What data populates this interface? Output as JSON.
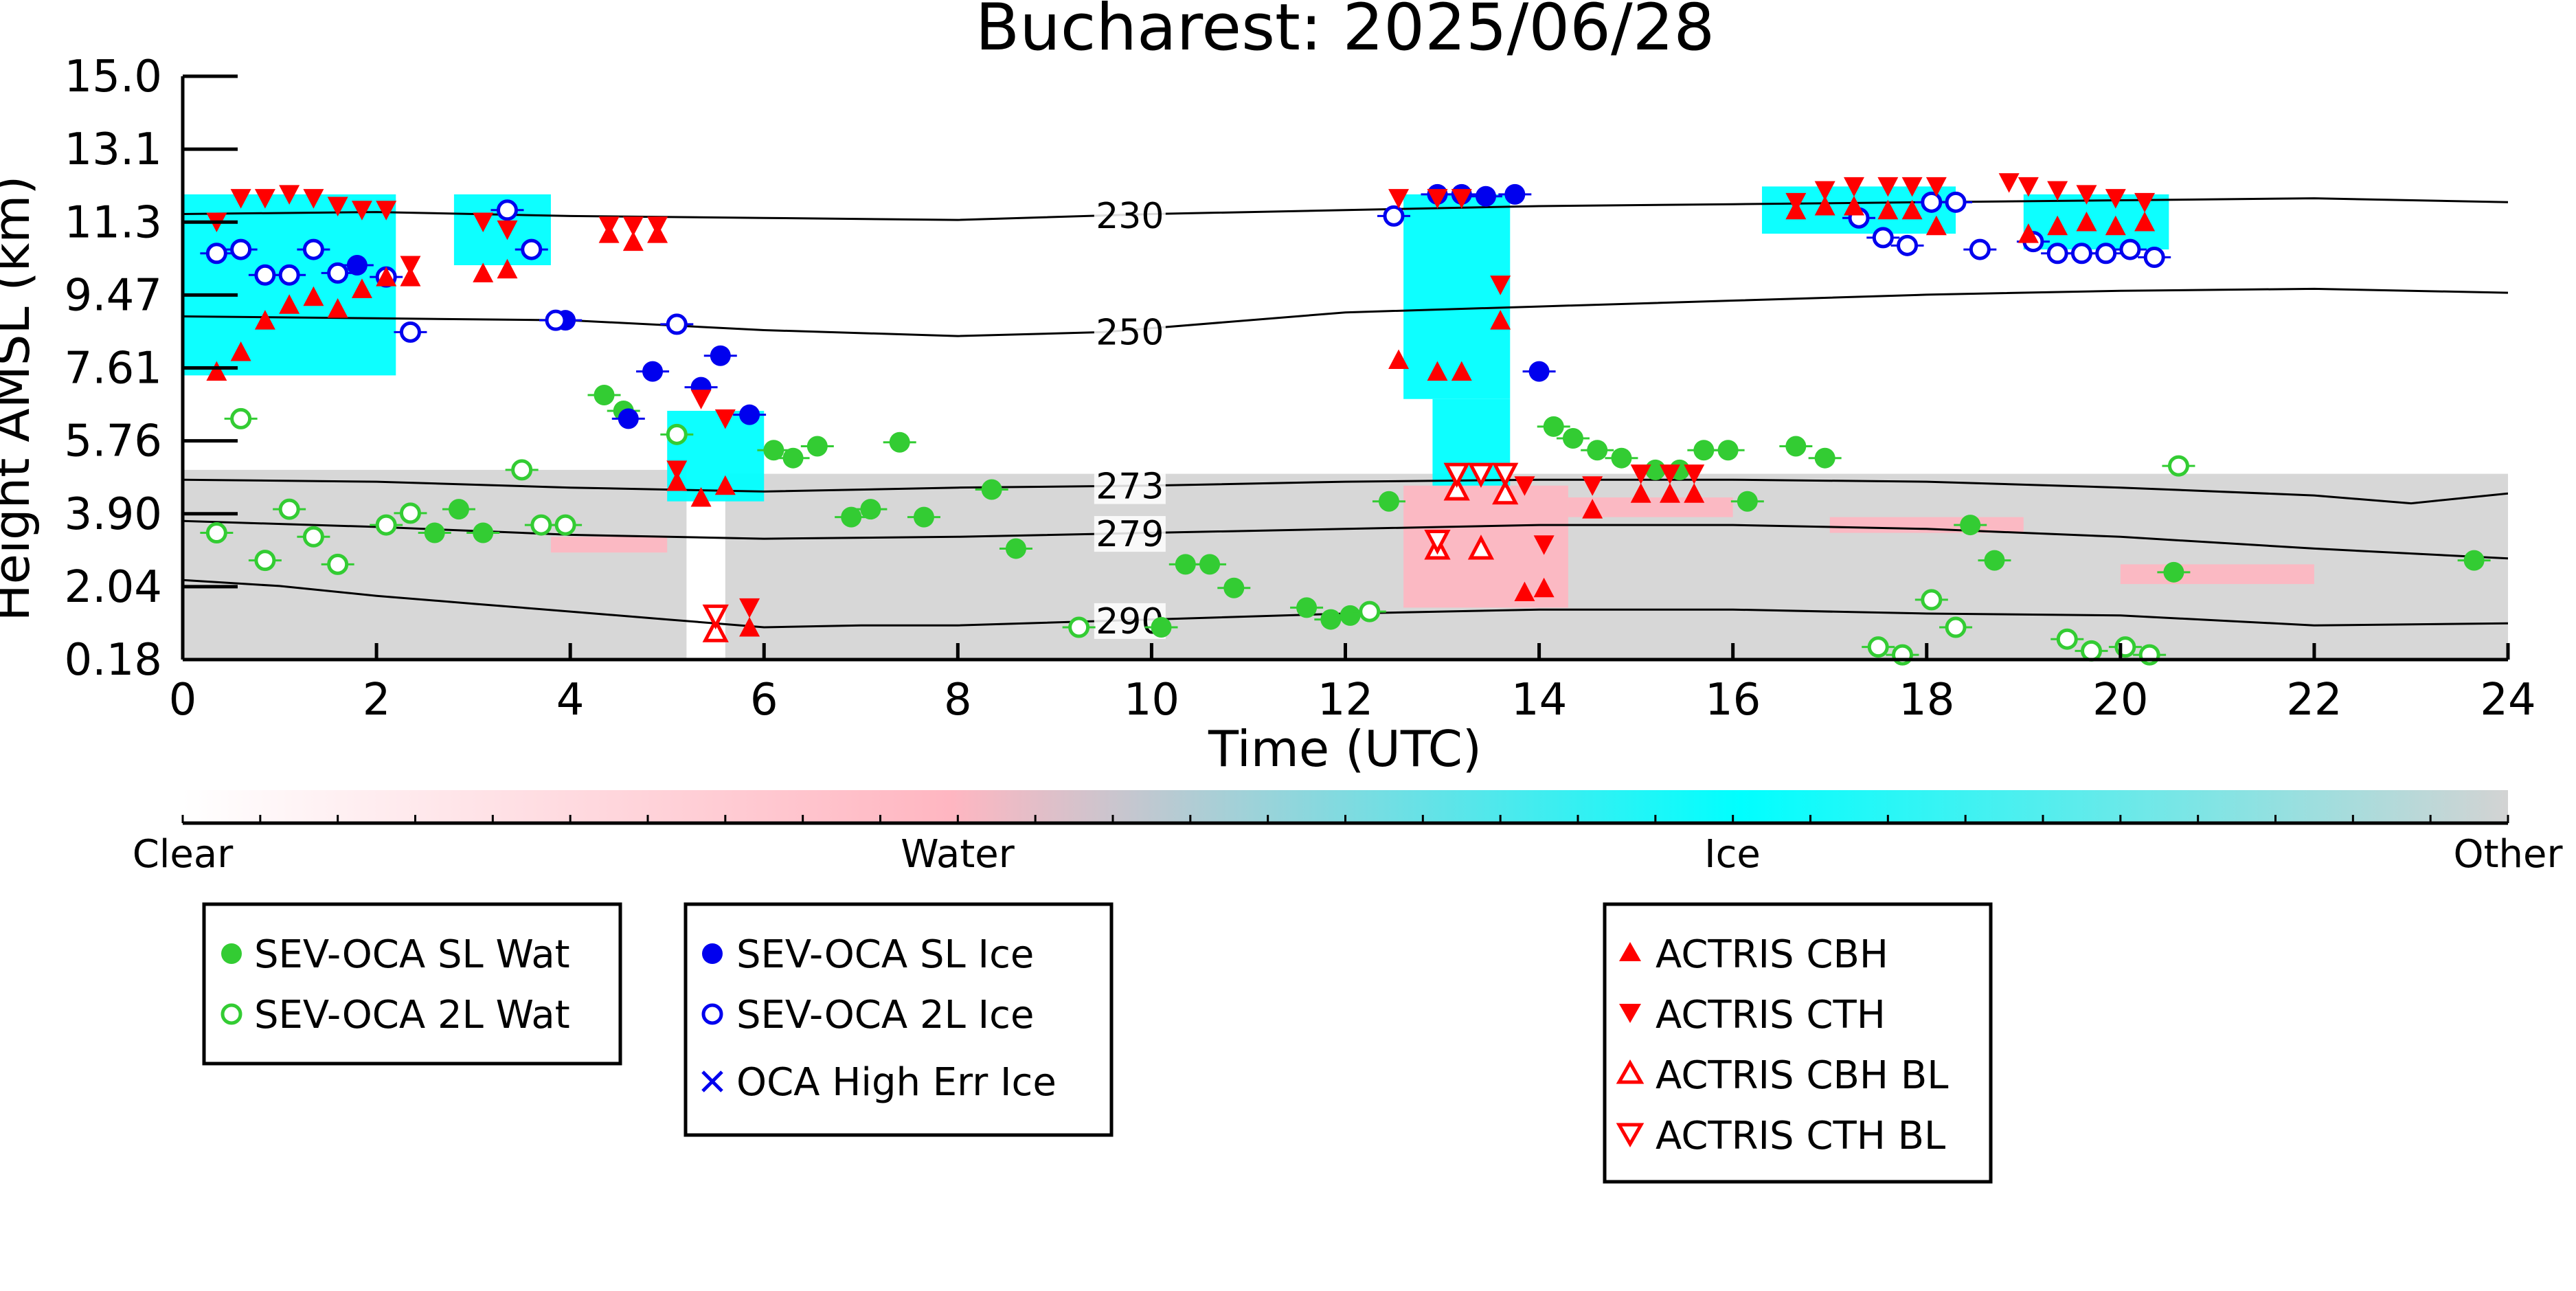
{
  "chart_data": {
    "type": "scatter",
    "title": "Bucharest: 2025/06/28",
    "xlabel": "Time (UTC)",
    "ylabel": "Height AMSL (km)",
    "xlim": [
      0,
      24
    ],
    "ylim": [
      0.18,
      15.0
    ],
    "x_ticks": [
      "0",
      "2",
      "4",
      "6",
      "8",
      "10",
      "12",
      "14",
      "16",
      "18",
      "20",
      "22",
      "24"
    ],
    "y_ticks": [
      "0.18",
      "2.04",
      "3.90",
      "5.76",
      "7.61",
      "9.47",
      "11.3",
      "13.1",
      "15.0"
    ],
    "colorbar": {
      "labels": [
        "Clear",
        "Water",
        "Ice",
        "Other"
      ],
      "colors": {
        "clear": "#ffffff",
        "water": "#ffb6c1",
        "ice": "#00ffff",
        "other": "#d3d3d3"
      }
    },
    "colors": {
      "green": "#33cc33",
      "blue": "#0000ee",
      "red": "#ff0000",
      "ice": "#00ffff",
      "water": "#ffb6c1",
      "other": "#d3d3d3"
    },
    "legend": {
      "group1": [
        "SEV-OCA SL Wat",
        "SEV-OCA 2L Wat"
      ],
      "group2": [
        "SEV-OCA SL Ice",
        "SEV-OCA 2L Ice",
        "OCA High Err Ice"
      ],
      "group3": [
        "ACTRIS CBH",
        "ACTRIS CTH",
        "ACTRIS CBH BL",
        "ACTRIS CTH BL"
      ]
    },
    "contours": [
      {
        "label": "230",
        "label_x": 9.45,
        "points": [
          [
            0,
            11.5
          ],
          [
            2,
            11.55
          ],
          [
            4,
            11.45
          ],
          [
            6,
            11.4
          ],
          [
            8,
            11.35
          ],
          [
            10,
            11.5
          ],
          [
            12,
            11.6
          ],
          [
            14,
            11.7
          ],
          [
            16,
            11.75
          ],
          [
            18,
            11.8
          ],
          [
            20,
            11.85
          ],
          [
            22,
            11.9
          ],
          [
            24,
            11.8
          ]
        ]
      },
      {
        "label": "250",
        "label_x": 9.45,
        "points": [
          [
            0,
            8.9
          ],
          [
            2,
            8.85
          ],
          [
            4,
            8.8
          ],
          [
            6,
            8.55
          ],
          [
            8,
            8.4
          ],
          [
            9.5,
            8.5
          ],
          [
            12,
            9.0
          ],
          [
            14,
            9.15
          ],
          [
            16,
            9.3
          ],
          [
            18,
            9.45
          ],
          [
            20,
            9.55
          ],
          [
            22,
            9.6
          ],
          [
            24,
            9.5
          ]
        ]
      },
      {
        "label": "273",
        "label_x": 9.45,
        "points": [
          [
            0,
            4.75
          ],
          [
            2,
            4.7
          ],
          [
            4,
            4.55
          ],
          [
            6,
            4.45
          ],
          [
            8,
            4.55
          ],
          [
            10,
            4.6
          ],
          [
            12,
            4.7
          ],
          [
            14,
            4.75
          ],
          [
            16,
            4.75
          ],
          [
            18,
            4.7
          ],
          [
            20,
            4.55
          ],
          [
            22,
            4.35
          ],
          [
            23,
            4.15
          ],
          [
            24,
            4.4
          ]
        ]
      },
      {
        "label": "279",
        "label_x": 9.45,
        "points": [
          [
            0,
            3.7
          ],
          [
            2,
            3.55
          ],
          [
            4,
            3.35
          ],
          [
            6,
            3.25
          ],
          [
            8,
            3.3
          ],
          [
            10,
            3.4
          ],
          [
            12,
            3.5
          ],
          [
            14,
            3.6
          ],
          [
            16,
            3.6
          ],
          [
            18,
            3.5
          ],
          [
            20,
            3.3
          ],
          [
            22,
            3.0
          ],
          [
            24,
            2.75
          ]
        ]
      },
      {
        "label": "290",
        "label_x": 9.45,
        "points": [
          [
            0,
            2.2
          ],
          [
            1,
            2.05
          ],
          [
            2,
            1.8
          ],
          [
            3,
            1.6
          ],
          [
            4,
            1.4
          ],
          [
            5,
            1.2
          ],
          [
            6,
            1.0
          ],
          [
            7,
            1.05
          ],
          [
            8,
            1.05
          ],
          [
            10,
            1.2
          ],
          [
            12,
            1.35
          ],
          [
            14,
            1.45
          ],
          [
            16,
            1.45
          ],
          [
            18,
            1.35
          ],
          [
            20,
            1.3
          ],
          [
            22,
            1.05
          ],
          [
            24,
            1.1
          ]
        ]
      }
    ],
    "cloud_mask": [
      {
        "class": "ice",
        "x0": 0.0,
        "x1": 2.2,
        "y0": 7.4,
        "y1": 12.0
      },
      {
        "class": "ice",
        "x0": 2.8,
        "x1": 3.8,
        "y0": 10.2,
        "y1": 12.0
      },
      {
        "class": "ice",
        "x0": 5.0,
        "x1": 6.0,
        "y0": 4.2,
        "y1": 6.5
      },
      {
        "class": "ice",
        "x0": 12.6,
        "x1": 13.7,
        "y0": 6.8,
        "y1": 12.0
      },
      {
        "class": "ice",
        "x0": 12.9,
        "x1": 13.7,
        "y0": 4.6,
        "y1": 6.8
      },
      {
        "class": "ice",
        "x0": 16.3,
        "x1": 18.3,
        "y0": 11.0,
        "y1": 12.2
      },
      {
        "class": "ice",
        "x0": 19.0,
        "x1": 20.5,
        "y0": 10.6,
        "y1": 12.0
      },
      {
        "class": "other",
        "x0": 0.0,
        "x1": 5.2,
        "y0": 0.18,
        "y1": 5.0
      },
      {
        "class": "other",
        "x0": 5.6,
        "x1": 24.0,
        "y0": 0.18,
        "y1": 4.9
      },
      {
        "class": "water",
        "x0": 3.8,
        "x1": 5.0,
        "y0": 2.9,
        "y1": 3.3
      },
      {
        "class": "water",
        "x0": 12.6,
        "x1": 14.3,
        "y0": 1.5,
        "y1": 4.6
      },
      {
        "class": "water",
        "x0": 14.3,
        "x1": 16.0,
        "y0": 3.8,
        "y1": 4.3
      },
      {
        "class": "water",
        "x0": 17.0,
        "x1": 19.0,
        "y0": 3.4,
        "y1": 3.8
      },
      {
        "class": "water",
        "x0": 20.0,
        "x1": 22.0,
        "y0": 2.1,
        "y1": 2.6
      }
    ],
    "series": [
      {
        "name": "SEV-OCA SL Wat",
        "marker": "circle",
        "fill": "filled",
        "color": "#33cc33",
        "points": [
          [
            2.6,
            3.4
          ],
          [
            2.85,
            4.0
          ],
          [
            3.1,
            3.4
          ],
          [
            4.35,
            6.9
          ],
          [
            4.55,
            6.5
          ],
          [
            6.1,
            5.5
          ],
          [
            6.3,
            5.3
          ],
          [
            6.55,
            5.6
          ],
          [
            6.9,
            3.8
          ],
          [
            7.1,
            4.0
          ],
          [
            7.4,
            5.7
          ],
          [
            7.65,
            3.8
          ],
          [
            8.35,
            4.5
          ],
          [
            8.6,
            3.0
          ],
          [
            10.1,
            1.0
          ],
          [
            10.35,
            2.6
          ],
          [
            10.6,
            2.6
          ],
          [
            10.85,
            2.0
          ],
          [
            11.6,
            1.5
          ],
          [
            11.85,
            1.2
          ],
          [
            12.05,
            1.3
          ],
          [
            12.45,
            4.2
          ],
          [
            14.15,
            6.1
          ],
          [
            14.35,
            5.8
          ],
          [
            14.6,
            5.5
          ],
          [
            14.85,
            5.3
          ],
          [
            15.2,
            5.0
          ],
          [
            15.45,
            5.0
          ],
          [
            15.7,
            5.5
          ],
          [
            15.95,
            5.5
          ],
          [
            16.15,
            4.2
          ],
          [
            16.65,
            5.6
          ],
          [
            16.95,
            5.3
          ],
          [
            18.45,
            3.6
          ],
          [
            18.7,
            2.7
          ],
          [
            20.55,
            2.4
          ],
          [
            23.65,
            2.7
          ]
        ]
      },
      {
        "name": "SEV-OCA 2L Wat",
        "marker": "circle",
        "fill": "open",
        "color": "#33cc33",
        "points": [
          [
            0.35,
            3.4
          ],
          [
            0.6,
            6.3
          ],
          [
            0.85,
            2.7
          ],
          [
            1.1,
            4.0
          ],
          [
            1.35,
            3.3
          ],
          [
            1.6,
            2.6
          ],
          [
            2.1,
            3.6
          ],
          [
            2.35,
            3.9
          ],
          [
            3.5,
            5.0
          ],
          [
            3.7,
            3.6
          ],
          [
            3.95,
            3.6
          ],
          [
            5.1,
            5.9
          ],
          [
            9.25,
            1.0
          ],
          [
            12.25,
            1.4
          ],
          [
            17.5,
            0.5
          ],
          [
            17.75,
            0.3
          ],
          [
            18.05,
            1.7
          ],
          [
            18.3,
            1.0
          ],
          [
            19.45,
            0.7
          ],
          [
            19.7,
            0.4
          ],
          [
            20.05,
            0.5
          ],
          [
            20.3,
            0.3
          ],
          [
            20.6,
            5.1
          ]
        ]
      },
      {
        "name": "SEV-OCA SL Ice",
        "marker": "circle",
        "fill": "filled",
        "color": "#0000ee",
        "points": [
          [
            1.8,
            10.2
          ],
          [
            3.95,
            8.8
          ],
          [
            4.6,
            6.3
          ],
          [
            4.85,
            7.5
          ],
          [
            5.35,
            7.1
          ],
          [
            5.55,
            7.9
          ],
          [
            5.85,
            6.4
          ],
          [
            12.95,
            12.0
          ],
          [
            13.2,
            12.0
          ],
          [
            13.45,
            11.95
          ],
          [
            13.75,
            12.0
          ],
          [
            14.0,
            7.5
          ]
        ]
      },
      {
        "name": "SEV-OCA 2L Ice",
        "marker": "circle",
        "fill": "open",
        "color": "#0000ee",
        "points": [
          [
            0.35,
            10.5
          ],
          [
            0.6,
            10.6
          ],
          [
            0.85,
            9.95
          ],
          [
            1.1,
            9.95
          ],
          [
            1.35,
            10.6
          ],
          [
            1.6,
            10.0
          ],
          [
            2.1,
            9.9
          ],
          [
            2.35,
            8.5
          ],
          [
            3.35,
            11.6
          ],
          [
            3.6,
            10.6
          ],
          [
            3.85,
            8.8
          ],
          [
            5.1,
            8.7
          ],
          [
            12.5,
            11.45
          ],
          [
            17.3,
            11.4
          ],
          [
            17.55,
            10.9
          ],
          [
            17.8,
            10.7
          ],
          [
            18.05,
            11.8
          ],
          [
            18.3,
            11.8
          ],
          [
            18.55,
            10.6
          ],
          [
            19.1,
            10.8
          ],
          [
            19.35,
            10.5
          ],
          [
            19.6,
            10.5
          ],
          [
            19.85,
            10.5
          ],
          [
            20.1,
            10.6
          ],
          [
            20.35,
            10.4
          ]
        ]
      },
      {
        "name": "ACTRIS CBH",
        "marker": "triangle-up",
        "fill": "filled",
        "color": "#ff0000",
        "points": [
          [
            0.35,
            7.5
          ],
          [
            0.6,
            8.0
          ],
          [
            0.85,
            8.8
          ],
          [
            1.1,
            9.2
          ],
          [
            1.35,
            9.4
          ],
          [
            1.6,
            9.1
          ],
          [
            1.85,
            9.6
          ],
          [
            2.1,
            9.9
          ],
          [
            2.35,
            9.9
          ],
          [
            3.1,
            10.0
          ],
          [
            3.35,
            10.1
          ],
          [
            4.4,
            11.0
          ],
          [
            4.65,
            10.8
          ],
          [
            4.9,
            11.0
          ],
          [
            5.1,
            4.7
          ],
          [
            5.35,
            4.3
          ],
          [
            5.6,
            4.6
          ],
          [
            5.85,
            1.0
          ],
          [
            12.55,
            7.8
          ],
          [
            12.95,
            7.5
          ],
          [
            13.2,
            7.5
          ],
          [
            13.6,
            8.8
          ],
          [
            13.85,
            1.9
          ],
          [
            14.05,
            2.0
          ],
          [
            14.55,
            4.0
          ],
          [
            15.05,
            4.4
          ],
          [
            15.35,
            4.4
          ],
          [
            15.6,
            4.4
          ],
          [
            16.65,
            11.6
          ],
          [
            16.95,
            11.7
          ],
          [
            17.25,
            11.7
          ],
          [
            17.6,
            11.6
          ],
          [
            17.85,
            11.6
          ],
          [
            18.1,
            11.2
          ],
          [
            19.05,
            11.0
          ],
          [
            19.35,
            11.2
          ],
          [
            19.65,
            11.3
          ],
          [
            19.95,
            11.2
          ],
          [
            20.25,
            11.3
          ]
        ]
      },
      {
        "name": "ACTRIS CTH",
        "marker": "triangle-down",
        "fill": "filled",
        "color": "#ff0000",
        "points": [
          [
            0.35,
            11.3
          ],
          [
            0.6,
            11.9
          ],
          [
            0.85,
            11.9
          ],
          [
            1.1,
            12.0
          ],
          [
            1.35,
            11.9
          ],
          [
            1.6,
            11.7
          ],
          [
            1.85,
            11.6
          ],
          [
            2.1,
            11.6
          ],
          [
            2.35,
            10.2
          ],
          [
            3.1,
            11.3
          ],
          [
            3.35,
            11.1
          ],
          [
            4.4,
            11.2
          ],
          [
            4.65,
            11.2
          ],
          [
            4.9,
            11.2
          ],
          [
            5.1,
            5.0
          ],
          [
            5.35,
            6.8
          ],
          [
            5.6,
            6.3
          ],
          [
            5.85,
            1.5
          ],
          [
            12.55,
            11.9
          ],
          [
            12.95,
            11.9
          ],
          [
            13.2,
            11.9
          ],
          [
            13.6,
            9.7
          ],
          [
            13.85,
            4.6
          ],
          [
            14.05,
            3.1
          ],
          [
            14.55,
            4.6
          ],
          [
            15.05,
            4.9
          ],
          [
            15.35,
            4.9
          ],
          [
            15.6,
            4.9
          ],
          [
            16.65,
            11.8
          ],
          [
            16.95,
            12.1
          ],
          [
            17.25,
            12.2
          ],
          [
            17.6,
            12.2
          ],
          [
            17.85,
            12.2
          ],
          [
            18.1,
            12.2
          ],
          [
            18.85,
            12.3
          ],
          [
            19.05,
            12.2
          ],
          [
            19.35,
            12.1
          ],
          [
            19.65,
            12.0
          ],
          [
            19.95,
            11.9
          ],
          [
            20.25,
            11.8
          ]
        ]
      },
      {
        "name": "ACTRIS CBH BL",
        "marker": "triangle-up",
        "fill": "open",
        "color": "#ff0000",
        "points": [
          [
            5.5,
            0.9
          ],
          [
            12.95,
            3.0
          ],
          [
            13.15,
            4.5
          ],
          [
            13.4,
            3.0
          ],
          [
            13.65,
            4.4
          ]
        ]
      },
      {
        "name": "ACTRIS CTH BL",
        "marker": "triangle-down",
        "fill": "open",
        "color": "#ff0000",
        "points": [
          [
            5.5,
            1.3
          ],
          [
            12.95,
            3.2
          ],
          [
            13.15,
            4.9
          ],
          [
            13.4,
            4.9
          ],
          [
            13.65,
            4.9
          ]
        ]
      }
    ]
  }
}
